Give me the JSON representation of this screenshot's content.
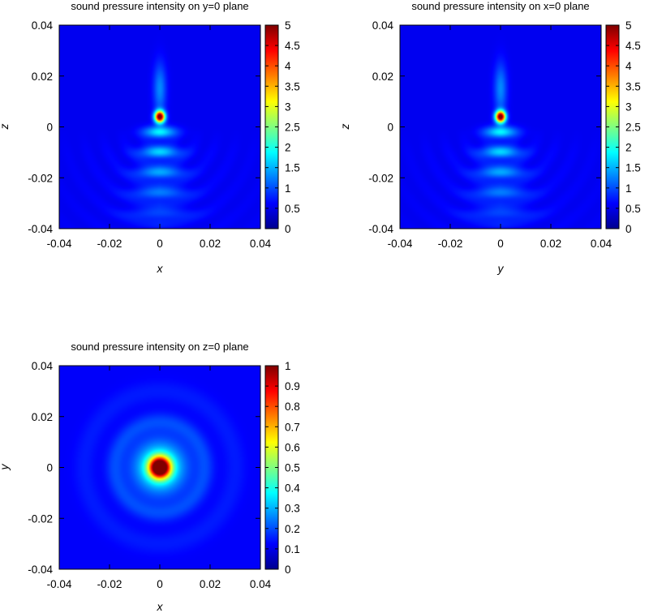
{
  "chart_data": [
    {
      "type": "heatmap",
      "title": "sound pressure intensity on y=0 plane",
      "xlabel": "x",
      "ylabel": "z",
      "xlim": [
        -0.04,
        0.04
      ],
      "ylim": [
        -0.04,
        0.04
      ],
      "xticks": [
        "-0.04",
        "-0.02",
        "0",
        "0.02",
        "0.04"
      ],
      "yticks": [
        "-0.04",
        "-0.02",
        "0",
        "0.02",
        "0.04"
      ],
      "colorbar": {
        "range": [
          0,
          5
        ],
        "ticks": [
          "0",
          "0.5",
          "1",
          "1.5",
          "2",
          "2.5",
          "3",
          "3.5",
          "4",
          "4.5",
          "5"
        ]
      },
      "colormap": "jet",
      "features": [
        {
          "kind": "peak",
          "x": 0.0,
          "y": 0.004,
          "value": 5.0
        },
        {
          "kind": "lobe",
          "x": 0.0,
          "y": -0.002,
          "value": 1.6
        },
        {
          "kind": "lobe",
          "x": 0.0,
          "y": -0.01,
          "value": 1.3
        },
        {
          "kind": "lobe",
          "x": 0.0,
          "y": -0.018,
          "value": 1.1
        },
        {
          "kind": "lobe",
          "x": 0.0,
          "y": -0.026,
          "value": 0.9
        },
        {
          "kind": "lobe",
          "x": 0.0,
          "y": 0.015,
          "value": 0.8
        }
      ]
    },
    {
      "type": "heatmap",
      "title": "sound pressure intensity on x=0 plane",
      "xlabel": "y",
      "ylabel": "z",
      "xlim": [
        -0.04,
        0.04
      ],
      "ylim": [
        -0.04,
        0.04
      ],
      "xticks": [
        "-0.04",
        "-0.02",
        "0",
        "0.02",
        "0.04"
      ],
      "yticks": [
        "-0.04",
        "-0.02",
        "0",
        "0.02",
        "0.04"
      ],
      "colorbar": {
        "range": [
          0,
          5
        ],
        "ticks": [
          "0",
          "0.5",
          "1",
          "1.5",
          "2",
          "2.5",
          "3",
          "3.5",
          "4",
          "4.5",
          "5"
        ]
      },
      "colormap": "jet",
      "features": [
        {
          "kind": "peak",
          "x": 0.0,
          "y": 0.004,
          "value": 5.0
        },
        {
          "kind": "lobe",
          "x": 0.0,
          "y": -0.002,
          "value": 1.6
        },
        {
          "kind": "lobe",
          "x": 0.0,
          "y": -0.01,
          "value": 1.3
        },
        {
          "kind": "lobe",
          "x": 0.0,
          "y": -0.018,
          "value": 1.1
        },
        {
          "kind": "lobe",
          "x": 0.0,
          "y": -0.026,
          "value": 0.9
        },
        {
          "kind": "lobe",
          "x": 0.0,
          "y": 0.015,
          "value": 0.8
        }
      ]
    },
    {
      "type": "heatmap",
      "title": "sound pressure intensity on z=0 plane",
      "xlabel": "x",
      "ylabel": "y",
      "xlim": [
        -0.04,
        0.04
      ],
      "ylim": [
        -0.04,
        0.04
      ],
      "xticks": [
        "-0.04",
        "-0.02",
        "0",
        "0.02",
        "0.04"
      ],
      "yticks": [
        "-0.04",
        "-0.02",
        "0",
        "0.02",
        "0.04"
      ],
      "colorbar": {
        "range": [
          0,
          1
        ],
        "ticks": [
          "0",
          "0.1",
          "0.2",
          "0.3",
          "0.4",
          "0.5",
          "0.6",
          "0.7",
          "0.8",
          "0.9",
          "1"
        ]
      },
      "colormap": "jet",
      "features": [
        {
          "kind": "peak",
          "x": 0.0,
          "y": 0.0,
          "value": 1.0
        },
        {
          "kind": "ring",
          "x": 0.0,
          "y": 0.0,
          "radius": 0.018,
          "value": 0.22
        }
      ]
    }
  ]
}
